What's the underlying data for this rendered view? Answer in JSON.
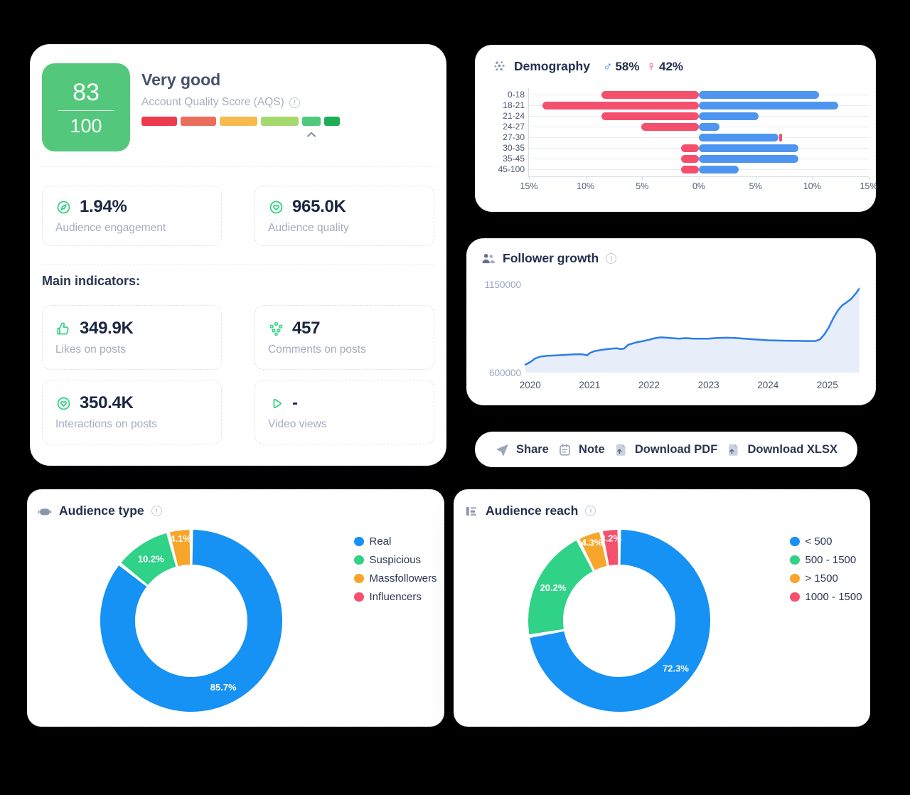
{
  "aqs_card": {
    "score": "83",
    "score_max": "100",
    "rating": "Very good",
    "score_label": "Account Quality Score (AQS)",
    "tile_color": "#53c87c",
    "scale_segments": [
      {
        "color": "#ee3a4e",
        "width": 50
      },
      {
        "color": "#eb6e5c",
        "width": 50
      },
      {
        "color": "#f8ba4c",
        "width": 53
      },
      {
        "color": "#a5d96d",
        "width": 53
      },
      {
        "color": "#4ecb7a",
        "width": 26
      },
      {
        "color": "#1eaf56",
        "width": 22
      }
    ],
    "pointer_segment_index": 4,
    "stats": [
      {
        "icon": "compass-icon",
        "value": "1.94%",
        "label": "Audience engagement"
      },
      {
        "icon": "heart-circle-icon",
        "value": "965.0K",
        "label": "Audience quality"
      }
    ],
    "main_indicators_heading": "Main indicators:",
    "indicators": [
      {
        "icon": "thumbs-up-icon",
        "value": "349.9K",
        "label": "Likes on posts"
      },
      {
        "icon": "comments-icon",
        "value": "457",
        "label": "Comments on posts"
      },
      {
        "icon": "heart-circle-icon",
        "value": "350.4K",
        "label": "Interactions on posts"
      },
      {
        "icon": "play-icon",
        "value": "-",
        "label": "Video views"
      }
    ]
  },
  "demography": {
    "title": "Demography",
    "male_symbol": "♂",
    "male_value": "58%",
    "female_symbol": "♀",
    "female_value": "42%",
    "male_color": "#3f87f0",
    "female_color": "#f0486e"
  },
  "follower_growth": {
    "title": "Follower growth"
  },
  "actions": [
    {
      "label": "Share",
      "icon": "share-icon"
    },
    {
      "label": "Note",
      "icon": "note-icon"
    },
    {
      "label": "Download PDF",
      "icon": "download-icon"
    },
    {
      "label": "Download XLSX",
      "icon": "download-icon"
    }
  ],
  "audience_type": {
    "title": "Audience type"
  },
  "audience_reach": {
    "title": "Audience reach"
  },
  "chart_data": [
    {
      "id": "demography",
      "type": "bar",
      "orientation": "diverging-horizontal",
      "categories": [
        "0-18",
        "18-21",
        "21-24",
        "24-27",
        "27-30",
        "30-35",
        "35-45",
        "45-100"
      ],
      "series": [
        {
          "name": "female",
          "color": "#f4506e",
          "values": [
            8.6,
            13.8,
            8.6,
            5.1,
            0.2,
            1.6,
            1.6,
            1.6
          ]
        },
        {
          "name": "male",
          "color": "#4e95f1",
          "values": [
            10.6,
            12.3,
            5.3,
            1.8,
            7,
            8.8,
            8.8,
            3.5
          ]
        }
      ],
      "xlim": [
        -15,
        15
      ],
      "xticks": [
        "15%",
        "10%",
        "5%",
        "0%",
        "5%",
        "10%",
        "15%"
      ],
      "female_on_right_rows": [
        4
      ],
      "legend_position": "none",
      "grid": "row-lines"
    },
    {
      "id": "follower_growth",
      "type": "area",
      "x": [
        2019.92,
        2020.0,
        2020.08,
        2020.17,
        2020.3,
        2020.45,
        2020.6,
        2020.75,
        2020.88,
        2020.96,
        2021.0,
        2021.08,
        2021.2,
        2021.33,
        2021.45,
        2021.52,
        2021.58,
        2021.65,
        2021.78,
        2021.9,
        2022.0,
        2022.1,
        2022.2,
        2022.35,
        2022.5,
        2022.62,
        2022.75,
        2022.9,
        2023.0,
        2023.15,
        2023.3,
        2023.45,
        2023.6,
        2023.75,
        2023.9,
        2024.0,
        2024.15,
        2024.3,
        2024.5,
        2024.65,
        2024.8,
        2024.88,
        2024.95,
        2025.02,
        2025.1,
        2025.18,
        2025.25,
        2025.32,
        2025.4,
        2025.48,
        2025.55
      ],
      "y": [
        650000,
        665000,
        688000,
        700000,
        705000,
        708000,
        711000,
        714000,
        714000,
        708000,
        722000,
        734000,
        742000,
        748000,
        752000,
        747000,
        750000,
        774000,
        788000,
        797000,
        805000,
        815000,
        820000,
        816000,
        812000,
        815000,
        812000,
        812000,
        812000,
        816000,
        818000,
        816000,
        812000,
        808000,
        804000,
        802000,
        800000,
        799000,
        798000,
        797000,
        797000,
        808000,
        840000,
        880000,
        940000,
        990000,
        1020000,
        1038000,
        1060000,
        1095000,
        1125000
      ],
      "xlim": [
        2019.895,
        2025.54
      ],
      "ylim": [
        600000,
        1150000
      ],
      "yticks": [
        "1150000",
        "600000"
      ],
      "xticks": [
        "2020",
        "2021",
        "2022",
        "2023",
        "2024",
        "2025"
      ],
      "xtick_values": [
        2020,
        2021,
        2022,
        2023,
        2024,
        2025
      ],
      "line_color": "#2e7ce8",
      "fill_color": "#e7eef9",
      "grid": "off"
    },
    {
      "id": "audience_type",
      "type": "pie",
      "labels": [
        "Real",
        "Suspicious",
        "Massfollowers",
        "Influencers"
      ],
      "values": [
        85.7,
        10.2,
        4.1,
        0
      ],
      "colors": [
        "#1691f4",
        "#2fd287",
        "#f7a62b",
        "#f5506c"
      ],
      "slice_labels": [
        "85.7%",
        "10.2%",
        "4.1%",
        ""
      ],
      "legend_position": "right"
    },
    {
      "id": "audience_reach",
      "type": "pie",
      "labels": [
        "< 500",
        "500 - 1500",
        "> 1500",
        "1000 - 1500"
      ],
      "values": [
        72.3,
        20.2,
        4.3,
        3.2
      ],
      "colors": [
        "#1691f4",
        "#2fd287",
        "#f7a62b",
        "#f5506c"
      ],
      "slice_labels": [
        "72.3%",
        "20.2%",
        "4.3%",
        "3.2%"
      ],
      "legend_position": "right"
    }
  ]
}
